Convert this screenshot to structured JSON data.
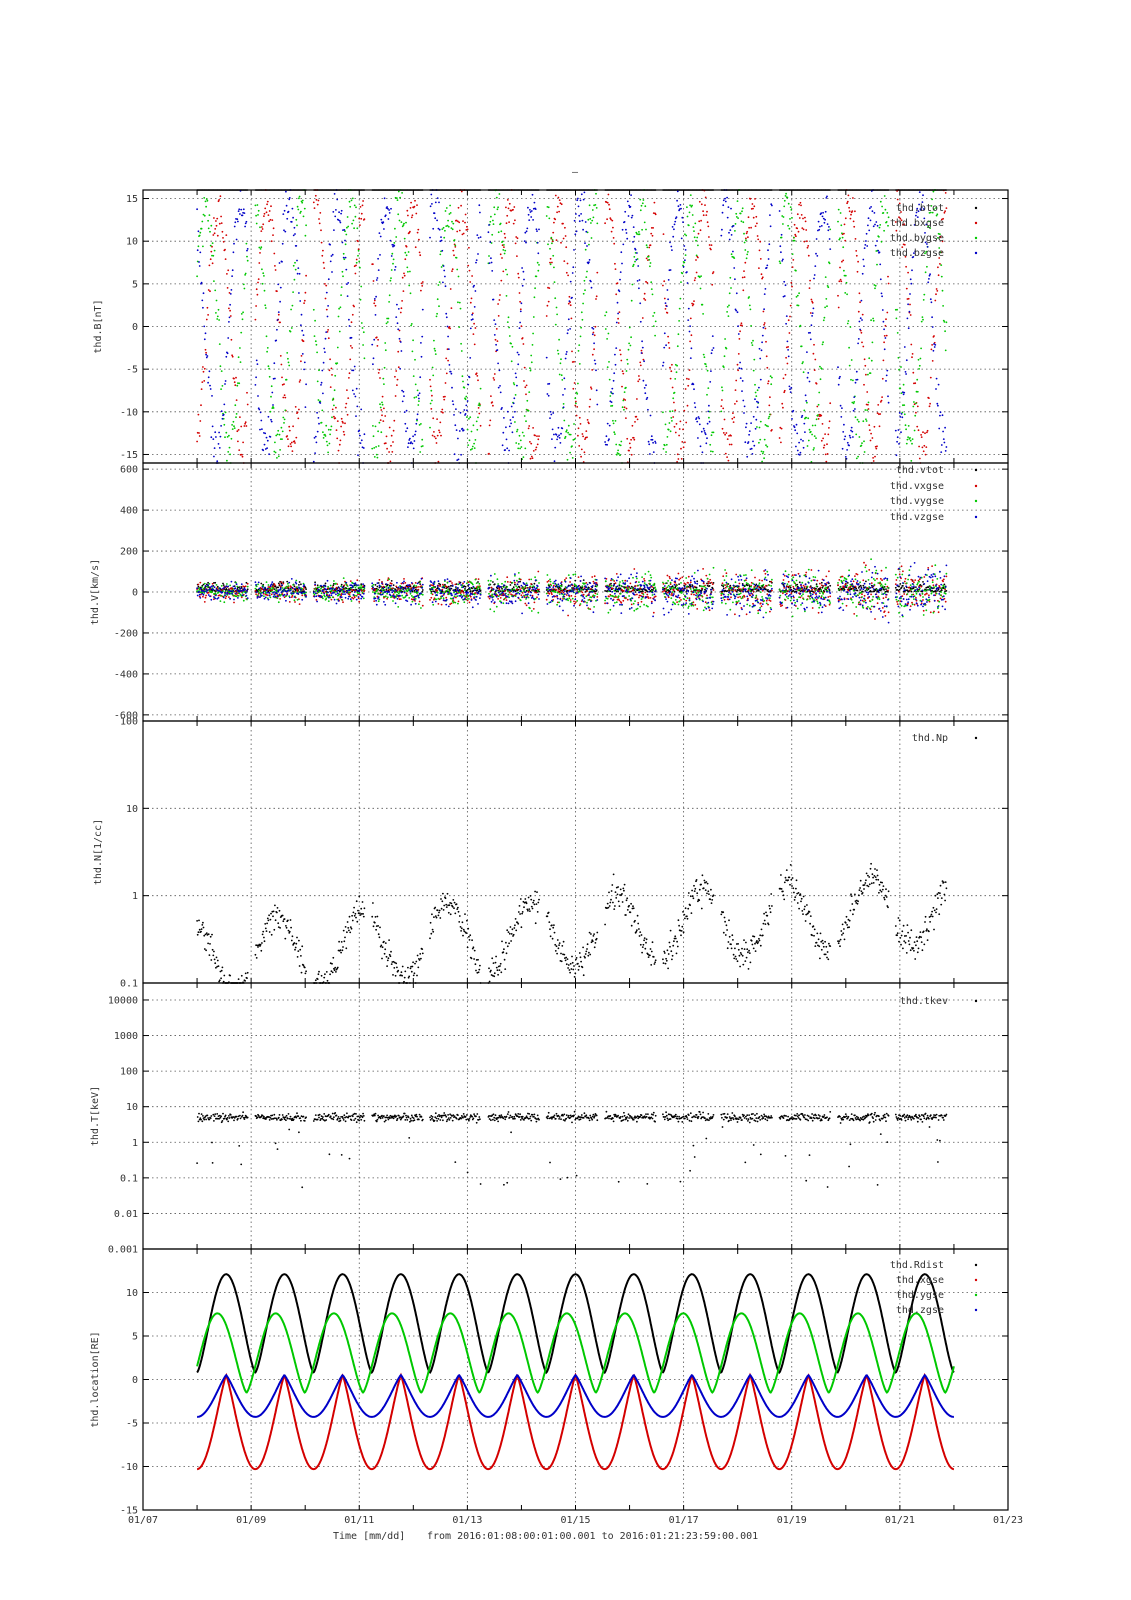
{
  "page_title": "–",
  "footer": {
    "time_label": "Time [mm/dd]",
    "range_text": "from 2016:01:08:00:01:00.001  to  2016:01:21:23:59:00.001"
  },
  "colors": {
    "black": "#000000",
    "red": "#d40000",
    "green": "#00c800",
    "blue": "#0000c8",
    "grid": "#555555"
  },
  "chart_data": [
    {
      "type": "scatter",
      "ylabel": "thd.B[nT]",
      "ylim": [
        -16,
        16
      ],
      "yscale": "linear",
      "yticks": [
        -15,
        -10,
        -5,
        0,
        5,
        10,
        15
      ],
      "ytick_labels": [
        "-15",
        "-10",
        "-5",
        "0",
        "5",
        "10",
        "15"
      ],
      "grid": true,
      "legend_position": "top-right",
      "series": [
        {
          "name": "thd.btot",
          "color": "black"
        },
        {
          "name": "thd.bxgse",
          "color": "red"
        },
        {
          "name": "thd.bygse",
          "color": "green"
        },
        {
          "name": "thd.bzgse",
          "color": "blue"
        }
      ],
      "legend": [
        "thd.btot",
        "thd.bxgse",
        "thd.bygse",
        "thd.bzgse"
      ]
    },
    {
      "type": "scatter",
      "ylabel": "thd.V[km/s]",
      "ylim": [
        -630,
        630
      ],
      "yscale": "linear",
      "yticks": [
        -600,
        -400,
        -200,
        0,
        200,
        400,
        600
      ],
      "ytick_labels": [
        "-600",
        "-400",
        "-200",
        "0",
        "200",
        "400",
        "600"
      ],
      "grid": true,
      "legend_position": "top-right",
      "series": [
        {
          "name": "thd.vtot",
          "color": "black"
        },
        {
          "name": "thd.vxgse",
          "color": "red"
        },
        {
          "name": "thd.vygse",
          "color": "green"
        },
        {
          "name": "thd.vzgse",
          "color": "blue"
        }
      ],
      "legend": [
        "thd.vtot",
        "thd.vxgse",
        "thd.vygse",
        "thd.vzgse"
      ]
    },
    {
      "type": "scatter",
      "ylabel": "thd.N[1/cc]",
      "ylim": [
        0.1,
        100
      ],
      "yscale": "log",
      "yticks": [
        0.1,
        1,
        10,
        100
      ],
      "ytick_labels": [
        "0.1",
        "1",
        "10",
        "100"
      ],
      "grid": true,
      "legend_position": "top-right",
      "series": [
        {
          "name": "thd.Np",
          "color": "black"
        }
      ],
      "legend": [
        "thd.Np"
      ]
    },
    {
      "type": "scatter",
      "ylabel": "thd.T[keV]",
      "ylim": [
        0.001,
        30000
      ],
      "yscale": "log",
      "yticks": [
        0.001,
        0.01,
        0.1,
        1,
        10,
        100,
        1000,
        10000
      ],
      "ytick_labels": [
        "0.001",
        "0.01",
        "0.1",
        "1",
        "10",
        "100",
        "1000",
        "10000"
      ],
      "grid": true,
      "legend_position": "top-right",
      "series": [
        {
          "name": "thd.tkev",
          "color": "black"
        }
      ],
      "legend": [
        "thd.tkev"
      ]
    },
    {
      "type": "line",
      "ylabel": "thd.location[RE]",
      "ylim": [
        -15,
        15
      ],
      "yscale": "linear",
      "yticks": [
        -15,
        -10,
        -5,
        0,
        5,
        10
      ],
      "ytick_labels": [
        "-15",
        "-10",
        "-5",
        "0",
        "5",
        "10"
      ],
      "grid": true,
      "legend_position": "top-right",
      "series": [
        {
          "name": "thd.Rdist",
          "color": "black",
          "min": 0.8,
          "max": 12.1
        },
        {
          "name": "thd.xgse",
          "color": "red",
          "min": -10.3,
          "max": 0.5
        },
        {
          "name": "thd.ygse",
          "color": "green",
          "min": -1.5,
          "max": 7.6
        },
        {
          "name": "thd.zgse",
          "color": "blue",
          "min": -4.3,
          "max": 0.5
        }
      ],
      "legend": [
        "thd.Rdist",
        "thd.xgse",
        "thd.ygse",
        "thd.zgse"
      ]
    }
  ],
  "x_axis": {
    "xlim": [
      "2016-01-07",
      "2016-01-23"
    ],
    "data_start": "2016-01-08",
    "data_end": "2016-01-22",
    "tick_labels": [
      "01/07",
      "01/09",
      "01/11",
      "01/13",
      "01/15",
      "01/17",
      "01/19",
      "01/21",
      "01/23"
    ]
  }
}
